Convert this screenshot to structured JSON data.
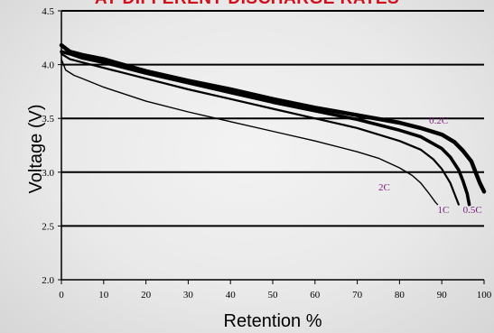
{
  "chart_data": {
    "type": "line",
    "title": "AT DIFFERENT DISCHARGE RATES",
    "xlabel": "Retention %",
    "ylabel": "Voltage (V)",
    "xlim": [
      0,
      100
    ],
    "ylim": [
      2.0,
      4.5
    ],
    "xticks": [
      "0",
      "10",
      "20",
      "30",
      "40",
      "50",
      "60",
      "70",
      "80",
      "90",
      "100"
    ],
    "yticks": [
      "2.0",
      "2.5",
      "3.0",
      "3.5",
      "4.0",
      "4.5"
    ],
    "grid": "horizontal",
    "series": [
      {
        "name": "0.2C",
        "label_at": [
          87,
          3.45
        ],
        "x": [
          0,
          2,
          5,
          10,
          20,
          30,
          40,
          50,
          60,
          70,
          80,
          85,
          90,
          93,
          95,
          97,
          98,
          99,
          100
        ],
        "y": [
          4.18,
          4.12,
          4.09,
          4.05,
          3.94,
          3.85,
          3.77,
          3.68,
          3.6,
          3.53,
          3.46,
          3.41,
          3.35,
          3.28,
          3.2,
          3.1,
          3.0,
          2.9,
          2.82
        ]
      },
      {
        "name": "0.5C",
        "label_at": [
          95,
          2.62
        ],
        "x": [
          0,
          2,
          5,
          10,
          20,
          30,
          40,
          50,
          60,
          70,
          80,
          85,
          90,
          92,
          94,
          95,
          96,
          96.5
        ],
        "y": [
          4.12,
          4.1,
          4.06,
          4.02,
          3.92,
          3.83,
          3.74,
          3.65,
          3.57,
          3.49,
          3.39,
          3.33,
          3.22,
          3.14,
          3.02,
          2.92,
          2.8,
          2.7
        ]
      },
      {
        "name": "1C",
        "label_at": [
          89,
          2.62
        ],
        "x": [
          0,
          2,
          5,
          10,
          20,
          30,
          40,
          50,
          60,
          70,
          80,
          85,
          88,
          90,
          92,
          93,
          94
        ],
        "y": [
          4.1,
          4.05,
          4.02,
          3.97,
          3.87,
          3.77,
          3.68,
          3.59,
          3.5,
          3.41,
          3.29,
          3.21,
          3.12,
          3.03,
          2.9,
          2.8,
          2.7
        ]
      },
      {
        "name": "2C",
        "label_at": [
          75,
          2.83
        ],
        "x": [
          0,
          1,
          3,
          5,
          10,
          20,
          30,
          40,
          50,
          60,
          70,
          75,
          80,
          83,
          85,
          87,
          88.5,
          89
        ],
        "y": [
          4.05,
          3.95,
          3.9,
          3.87,
          3.79,
          3.66,
          3.56,
          3.47,
          3.38,
          3.29,
          3.19,
          3.13,
          3.04,
          2.97,
          2.9,
          2.8,
          2.72,
          2.7
        ]
      }
    ]
  }
}
